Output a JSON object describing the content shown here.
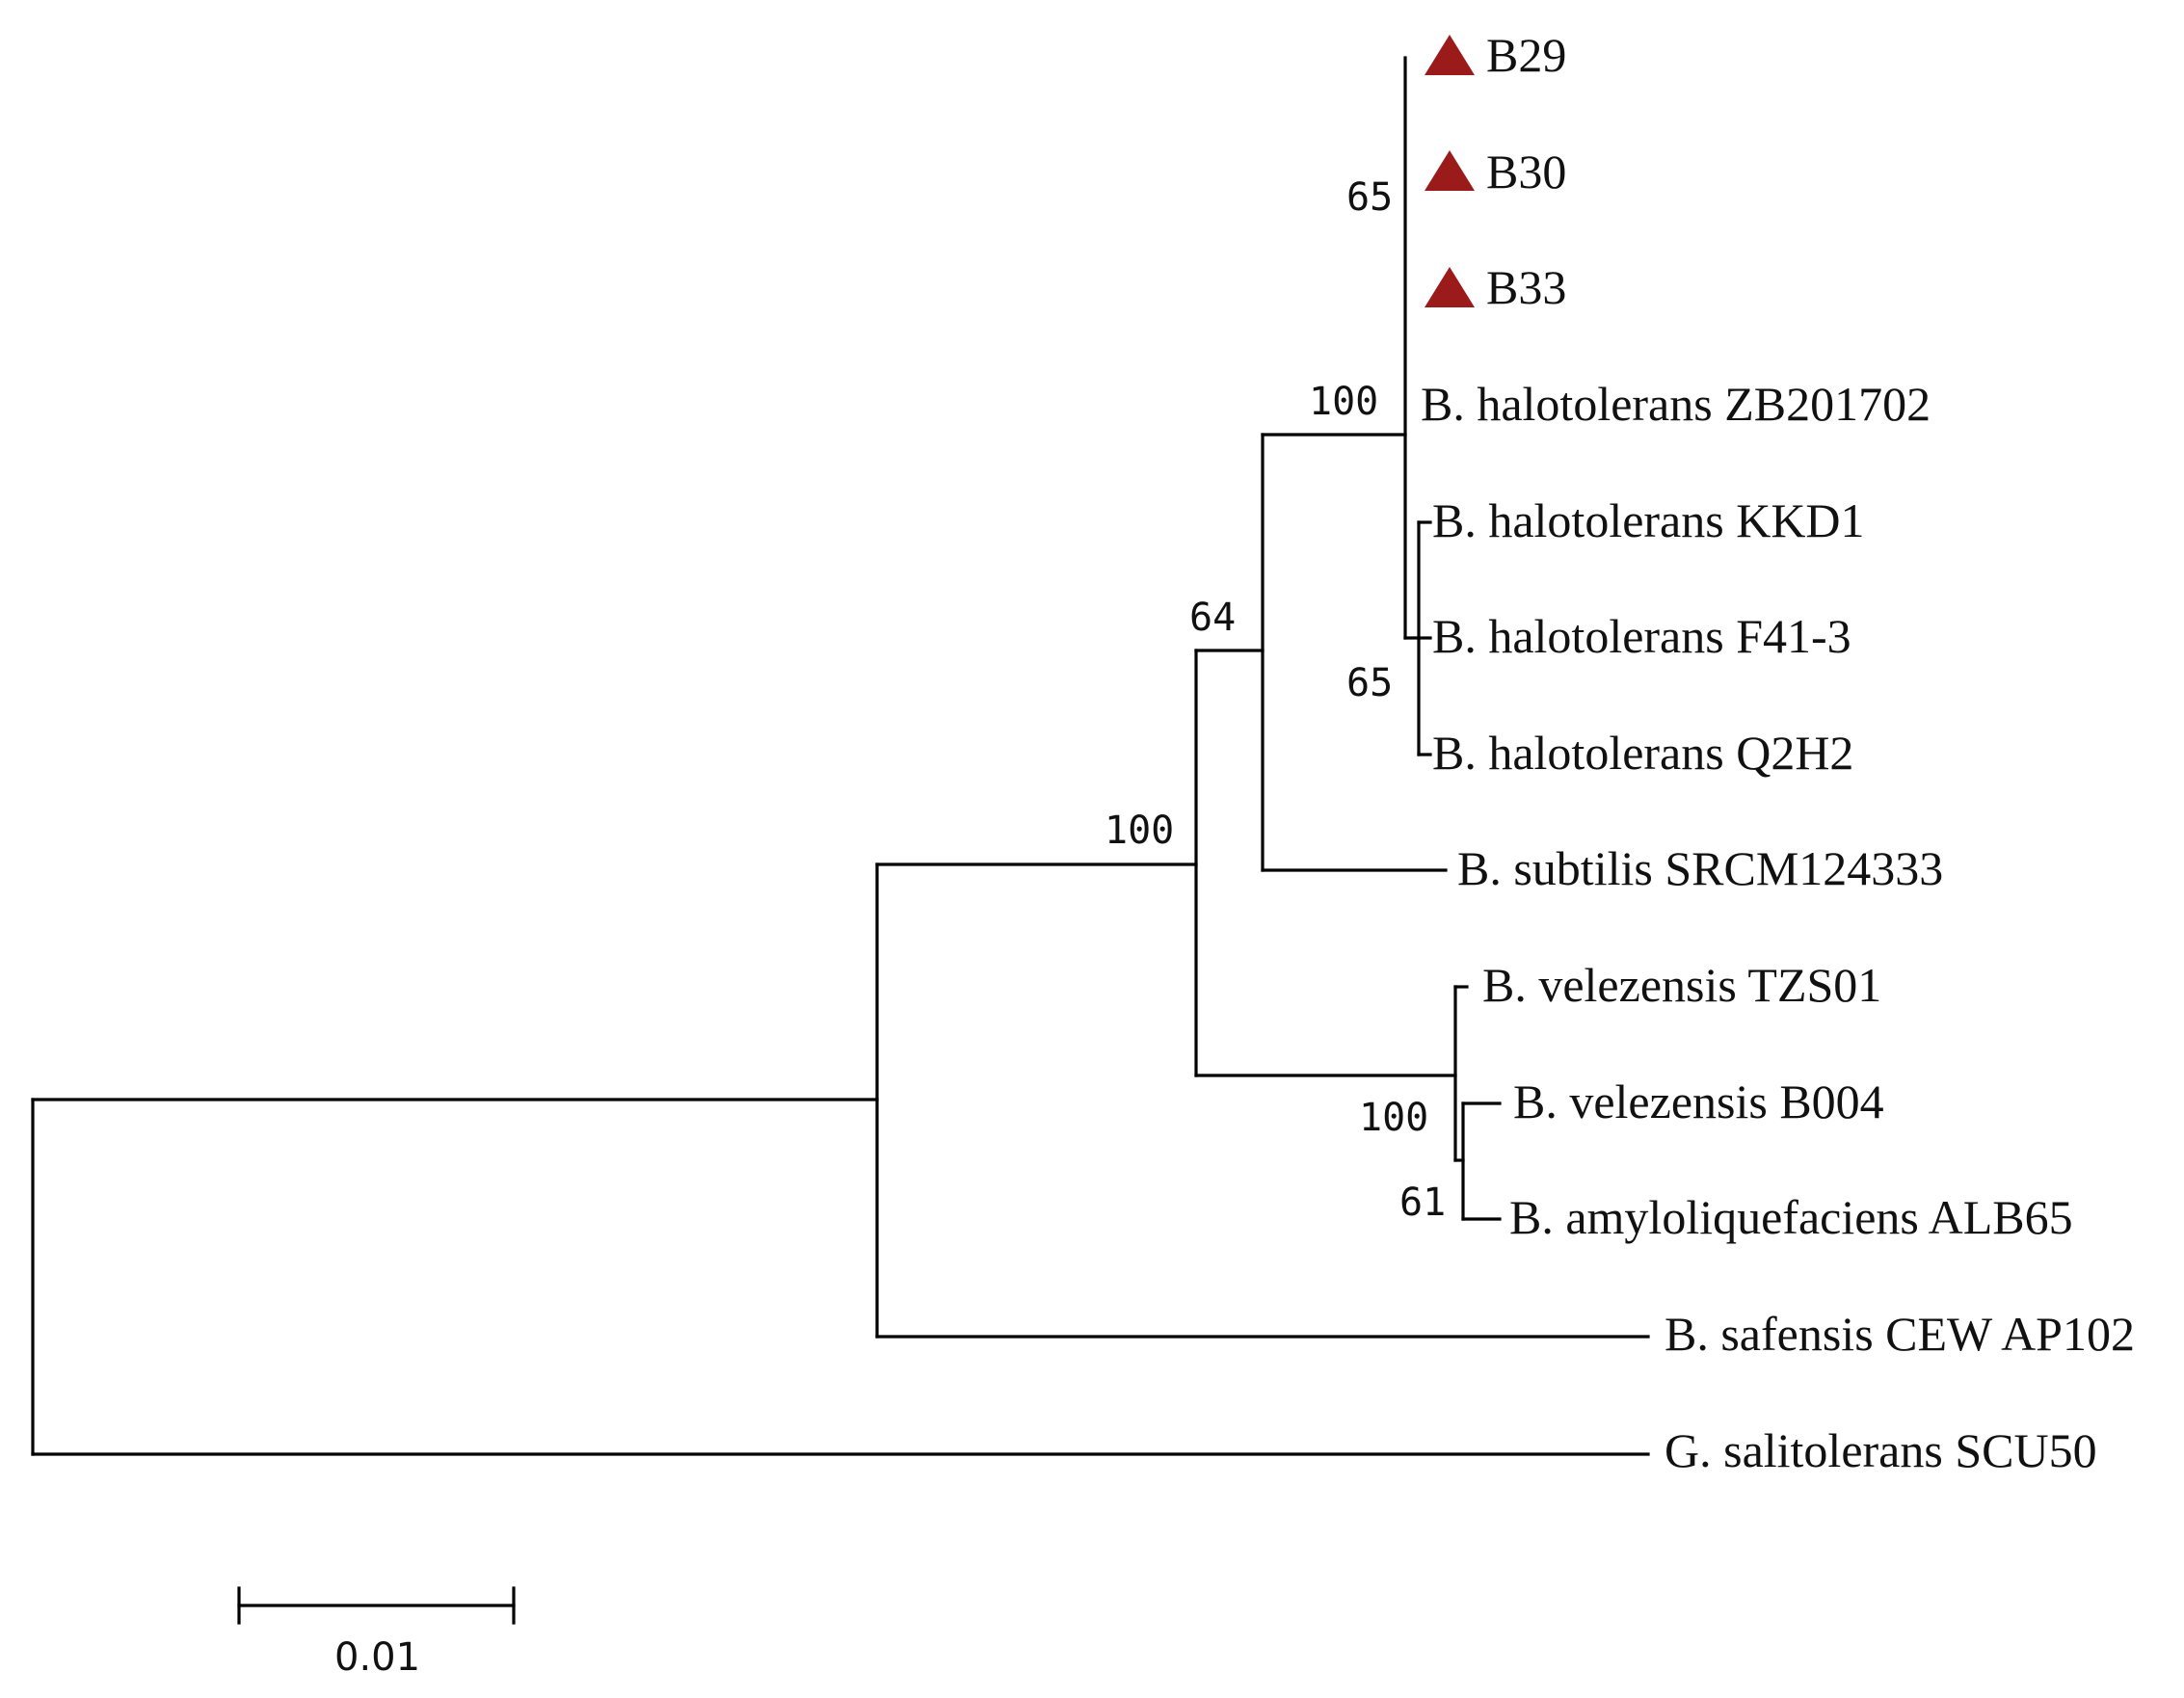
{
  "colors": {
    "marker": "#9b1b1b",
    "line": "#000000",
    "text": "#111111"
  },
  "leaves": [
    {
      "label": "B29",
      "marker": "triangle"
    },
    {
      "label": "B30",
      "marker": "triangle"
    },
    {
      "label": "B33",
      "marker": "triangle"
    },
    {
      "label": "B. halotolerans ZB201702"
    },
    {
      "label": "B. halotolerans KKD1"
    },
    {
      "label": "B. halotolerans F41-3"
    },
    {
      "label": "B. halotolerans Q2H2"
    },
    {
      "label": "B. subtilis SRCM124333"
    },
    {
      "label": "B. velezensis TZS01"
    },
    {
      "label": "B. velezensis B004"
    },
    {
      "label": "B. amyloliquefaciens ALB65"
    },
    {
      "label": "B. safensis CEW AP102"
    },
    {
      "label": "G. salitolerans SCU50"
    }
  ],
  "bootstrap": {
    "b29_b33_clade": "65",
    "halotolerans_clade": "100",
    "kkd1_q2h2_clade": "65",
    "subtilis_clade": "64",
    "bacillus_core_clade": "100",
    "velezensis_clade": "100",
    "b004_alb65_clade": "61"
  },
  "scale_bar": {
    "label": "0.01"
  }
}
